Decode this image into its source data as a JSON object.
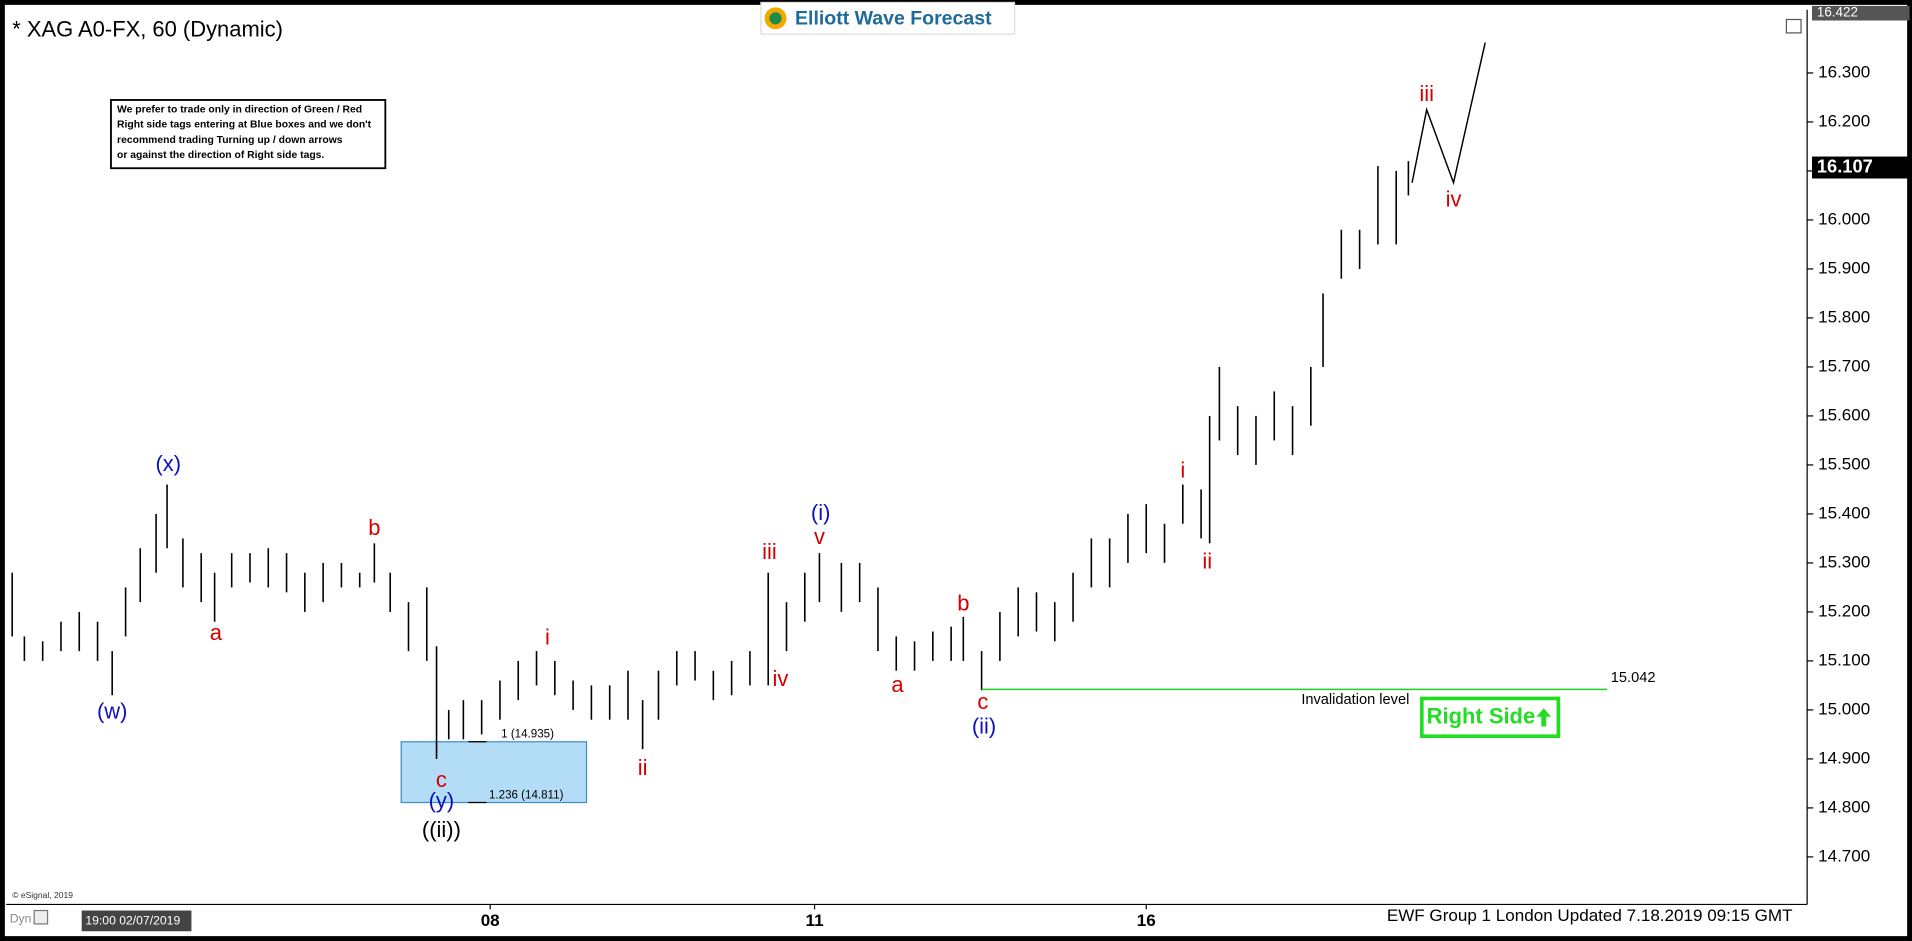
{
  "header": {
    "title": "* XAG A0-FX, 60 (Dynamic)",
    "logo": "Elliott Wave Forecast"
  },
  "note": [
    "We prefer to trade only in direction of Green / Red",
    "Right side tags entering at Blue boxes and we don't",
    "recommend trading Turning up / down arrows",
    "or against the direction of Right side tags."
  ],
  "footer": {
    "copyright": "© eSignal, 2019",
    "mode": "Dyn",
    "cursor": "19:00 02/07/2019",
    "updated": "EWF Group 1 London Updated 7.18.2019 09:15 GMT"
  },
  "badge": "Right Side",
  "chart_data": {
    "type": "ohlc",
    "x": [
      5,
      15,
      30,
      45,
      60,
      75,
      87,
      98,
      110,
      123,
      132,
      145,
      160,
      171,
      185,
      200,
      215,
      230,
      245,
      260,
      275,
      290,
      302,
      315,
      330,
      345,
      353,
      363,
      375,
      390,
      405,
      420,
      435,
      450,
      465,
      480,
      495,
      510,
      522,
      535,
      550,
      565,
      580,
      595,
      610,
      625,
      640,
      655,
      667,
      685,
      700,
      715,
      730,
      745,
      760,
      775,
      785,
      800,
      815,
      830,
      845,
      860,
      875,
      890,
      905,
      920,
      935,
      950,
      965,
      980,
      987,
      995,
      1010,
      1025,
      1040,
      1055,
      1070,
      1080,
      1095,
      1110,
      1125,
      1140,
      1150
    ],
    "high": [
      15.28,
      15.15,
      15.14,
      15.18,
      15.2,
      15.18,
      15.12,
      15.25,
      15.33,
      15.4,
      15.46,
      15.35,
      15.32,
      15.28,
      15.32,
      15.32,
      15.33,
      15.32,
      15.28,
      15.3,
      15.3,
      15.28,
      15.34,
      15.28,
      15.22,
      15.25,
      15.13,
      15.0,
      15.02,
      15.02,
      15.06,
      15.1,
      15.12,
      15.1,
      15.06,
      15.05,
      15.05,
      15.08,
      15.02,
      15.08,
      15.12,
      15.12,
      15.08,
      15.1,
      15.12,
      15.28,
      15.22,
      15.28,
      15.32,
      15.3,
      15.3,
      15.25,
      15.15,
      15.14,
      15.16,
      15.17,
      15.19,
      15.12,
      15.2,
      15.25,
      15.24,
      15.22,
      15.28,
      15.35,
      15.35,
      15.4,
      15.42,
      15.38,
      15.46,
      15.45,
      15.6,
      15.7,
      15.62,
      15.6,
      15.65,
      15.62,
      15.7,
      15.85,
      15.98,
      15.98,
      16.11,
      16.1,
      16.12
    ],
    "low": [
      15.15,
      15.1,
      15.1,
      15.12,
      15.12,
      15.1,
      15.03,
      15.15,
      15.22,
      15.28,
      15.33,
      15.25,
      15.22,
      15.18,
      15.25,
      15.26,
      15.25,
      15.24,
      15.2,
      15.22,
      15.25,
      15.25,
      15.26,
      15.2,
      15.12,
      15.1,
      14.9,
      14.94,
      14.94,
      14.95,
      14.98,
      15.02,
      15.05,
      15.03,
      15.0,
      14.98,
      14.98,
      14.98,
      14.92,
      14.98,
      15.05,
      15.06,
      15.02,
      15.03,
      15.05,
      15.05,
      15.12,
      15.18,
      15.22,
      15.2,
      15.22,
      15.12,
      15.08,
      15.08,
      15.1,
      15.1,
      15.1,
      15.04,
      15.1,
      15.15,
      15.16,
      15.14,
      15.18,
      15.25,
      15.25,
      15.3,
      15.32,
      15.3,
      15.38,
      15.35,
      15.34,
      15.55,
      15.52,
      15.5,
      15.55,
      15.52,
      15.58,
      15.7,
      15.88,
      15.9,
      15.95,
      15.95,
      16.05
    ],
    "color": "#000000",
    "xlim": [
      0,
      1477
    ],
    "xticks": [
      {
        "value": 397,
        "label": "08"
      },
      {
        "value": 663,
        "label": "11"
      },
      {
        "value": 935,
        "label": "16"
      }
    ],
    "ylim": [
      14.603,
      16.429
    ],
    "yticks": [
      {
        "value": 14.7,
        "label": "14.700"
      },
      {
        "value": 14.8,
        "label": "14.800"
      },
      {
        "value": 14.9,
        "label": "14.900"
      },
      {
        "value": 15.0,
        "label": "15.000"
      },
      {
        "value": 15.1,
        "label": "15.100"
      },
      {
        "value": 15.2,
        "label": "15.200"
      },
      {
        "value": 15.3,
        "label": "15.300"
      },
      {
        "value": 15.4,
        "label": "15.400"
      },
      {
        "value": 15.5,
        "label": "15.500"
      },
      {
        "value": 15.6,
        "label": "15.600"
      },
      {
        "value": 15.7,
        "label": "15.700"
      },
      {
        "value": 15.8,
        "label": "15.800"
      },
      {
        "value": 15.9,
        "label": "15.900"
      },
      {
        "value": 16.0,
        "label": "16.000"
      },
      {
        "value": 16.1,
        "label": "16.100"
      },
      {
        "value": 16.2,
        "label": "16.200"
      },
      {
        "value": 16.3,
        "label": "16.300"
      }
    ],
    "top_price": 16.422,
    "last_price": 16.107,
    "projection": {
      "x": [
        1153,
        1165,
        1187,
        1213
      ],
      "values": [
        16.076,
        16.225,
        16.076,
        16.362
      ]
    },
    "invalidation": {
      "label": "Invalidation level",
      "value": 15.042,
      "x": [
        800,
        1313
      ]
    },
    "fib_box": {
      "x": [
        324,
        476
      ],
      "color": "#b3dcf7",
      "levels": [
        {
          "value": 14.935,
          "label": "1 (14.935)"
        },
        {
          "value": 14.811,
          "label": "1.236 (14.811)"
        }
      ]
    },
    "annotations": [
      {
        "text": "(x)",
        "x": 133,
        "y": 15.499,
        "color": "#1010c0"
      },
      {
        "text": "(w)",
        "x": 87,
        "y": 14.994,
        "color": "#1010c0"
      },
      {
        "text": "a",
        "x": 172,
        "y": 15.155,
        "color": "#d40000"
      },
      {
        "text": "b",
        "x": 302,
        "y": 15.369,
        "color": "#d40000"
      },
      {
        "text": "c",
        "x": 357,
        "y": 14.854,
        "color": "#d40000"
      },
      {
        "text": "(y)",
        "x": 357,
        "y": 14.812,
        "color": "#1010c0"
      },
      {
        "text": "((ii))",
        "x": 357,
        "y": 14.752,
        "color": "#000000"
      },
      {
        "text": "i",
        "x": 444,
        "y": 15.145,
        "color": "#d40000"
      },
      {
        "text": "ii",
        "x": 522,
        "y": 14.879,
        "color": "#d40000"
      },
      {
        "text": "iii",
        "x": 626,
        "y": 15.32,
        "color": "#d40000"
      },
      {
        "text": "iv",
        "x": 635,
        "y": 15.061,
        "color": "#d40000"
      },
      {
        "text": "v",
        "x": 667,
        "y": 15.35,
        "color": "#d40000"
      },
      {
        "text": "(i)",
        "x": 668,
        "y": 15.399,
        "color": "#1010c0"
      },
      {
        "text": "a",
        "x": 731,
        "y": 15.048,
        "color": "#d40000"
      },
      {
        "text": "b",
        "x": 785,
        "y": 15.215,
        "color": "#d40000"
      },
      {
        "text": "c",
        "x": 801,
        "y": 15.014,
        "color": "#d40000"
      },
      {
        "text": "(ii)",
        "x": 802,
        "y": 14.964,
        "color": "#1010c0"
      },
      {
        "text": "i",
        "x": 965,
        "y": 15.486,
        "color": "#d40000"
      },
      {
        "text": "ii",
        "x": 985,
        "y": 15.3,
        "color": "#d40000"
      },
      {
        "text": "iii",
        "x": 1165,
        "y": 16.255,
        "color": "#d40000"
      },
      {
        "text": "iv",
        "x": 1187,
        "y": 16.039,
        "color": "#d40000"
      }
    ]
  }
}
